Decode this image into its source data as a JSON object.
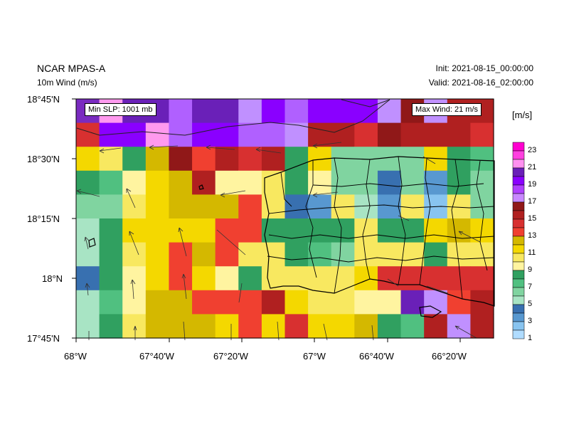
{
  "header": {
    "model": "NCAR MPAS-A",
    "field": "10m Wind (m/s)",
    "init": "Init: 2021-08-15_00:00:00",
    "valid": "Valid: 2021-08-16_02:00:00"
  },
  "annotations": {
    "min_slp": "Min SLP:  1001 mb",
    "max_wind": "Max Wind:  21 m/s"
  },
  "colorbar": {
    "title": "[m/s]",
    "labels": [
      "23",
      "21",
      "19",
      "17",
      "15",
      "13",
      "11",
      "9",
      "7",
      "5",
      "3",
      "1"
    ],
    "colors": [
      "#ff00d0",
      "#ff40e0",
      "#ff90f0",
      "#6a1fb8",
      "#8a00ff",
      "#b040ff",
      "#c888ff",
      "#901818",
      "#b02020",
      "#d83030",
      "#f04030",
      "#d4b800",
      "#f4d800",
      "#f8e860",
      "#fff4a0",
      "#30a060",
      "#50c080",
      "#80d4a0",
      "#a8e4c4",
      "#3870b0",
      "#5898d0",
      "#88c4f0",
      "#b0dcff"
    ]
  },
  "axes": {
    "y_ticks": [
      "18°45'N",
      "18°30'N",
      "18°15'N",
      "18°N",
      "17°45'N"
    ],
    "x_ticks": [
      "68°W",
      "67°40'W",
      "67°20'W",
      "67°W",
      "66°40'W",
      "66°20'W"
    ]
  },
  "grid": {
    "rows": [
      [
        "#7a2bc0",
        "#ff99ee",
        "#6a20b8",
        "#6a20b8",
        "#b060ff",
        "#6a20b8",
        "#6a20b8",
        "#c090ff",
        "#8a00ff",
        "#b060ff",
        "#8a00ff",
        "#8a00ff",
        "#8a00ff",
        "#c090ff",
        "#901818",
        "#c090ff",
        "#b02020",
        "#b02020"
      ],
      [
        "#d83030",
        "#8a00ff",
        "#8a00ff",
        "#ff99ee",
        "#b060ff",
        "#8a00ff",
        "#8a00ff",
        "#b060ff",
        "#b060ff",
        "#c090ff",
        "#b02020",
        "#b02020",
        "#d83030",
        "#901818",
        "#b02020",
        "#b02020",
        "#b02020",
        "#d83030"
      ],
      [
        "#f4d800",
        "#f8e860",
        "#30a060",
        "#d4b800",
        "#901818",
        "#f04030",
        "#b02020",
        "#d83030",
        "#b02020",
        "#30a060",
        "#f4d800",
        "#80d4a0",
        "#80d4a0",
        "#80d4a0",
        "#80d4a0",
        "#f4d800",
        "#30a060",
        "#50c080"
      ],
      [
        "#30a060",
        "#50c080",
        "#fff4a0",
        "#f4d800",
        "#d4b800",
        "#b02020",
        "#fff4a0",
        "#fff4a0",
        "#f8e860",
        "#30a060",
        "#fff4a0",
        "#80d4a0",
        "#80d4a0",
        "#3870b0",
        "#80d4a0",
        "#5898d0",
        "#30a060",
        "#80d4a0"
      ],
      [
        "#80d4a0",
        "#80d4a0",
        "#f8e860",
        "#f4d800",
        "#d4b800",
        "#d4b800",
        "#d4b800",
        "#f04030",
        "#f8e860",
        "#3870b0",
        "#5898d0",
        "#f8e860",
        "#a8e4c4",
        "#5898d0",
        "#f8e860",
        "#88c4f0",
        "#f8e860",
        "#80d4a0"
      ],
      [
        "#a8e4c4",
        "#30a060",
        "#f4d800",
        "#f4d800",
        "#f4d800",
        "#f4d800",
        "#f04030",
        "#f04030",
        "#30a060",
        "#30a060",
        "#30a060",
        "#30a060",
        "#f8e860",
        "#30a060",
        "#30a060",
        "#f4d800",
        "#d4b800",
        "#f4d800"
      ],
      [
        "#a8e4c4",
        "#30a060",
        "#f8e860",
        "#f4d800",
        "#f04030",
        "#d4b800",
        "#f04030",
        "#f8e860",
        "#f8e860",
        "#30a060",
        "#50c080",
        "#80d4a0",
        "#f8e860",
        "#f8e860",
        "#f8e860",
        "#30a060",
        "#f8e860",
        "#f8e860"
      ],
      [
        "#3870b0",
        "#30a060",
        "#fff4a0",
        "#f4d800",
        "#f04030",
        "#f4d800",
        "#fff4a0",
        "#30a060",
        "#f8e860",
        "#f8e860",
        "#f8e860",
        "#f8e860",
        "#f4d800",
        "#d83030",
        "#d83030",
        "#d83030",
        "#d83030",
        "#d83030"
      ],
      [
        "#a8e4c4",
        "#50c080",
        "#fff4a0",
        "#d4b800",
        "#d4b800",
        "#f04030",
        "#f04030",
        "#f04030",
        "#b02020",
        "#f4d800",
        "#f8e860",
        "#f8e860",
        "#fff4a0",
        "#fff4a0",
        "#6a20b8",
        "#c090ff",
        "#f04030",
        "#b02020"
      ],
      [
        "#a8e4c4",
        "#30a060",
        "#f8e860",
        "#d4b800",
        "#d4b800",
        "#d4b800",
        "#f4d800",
        "#f04030",
        "#f4d800",
        "#d83030",
        "#f4d800",
        "#f4d800",
        "#d4b800",
        "#30a060",
        "#50c080",
        "#b02020",
        "#c090ff",
        "#b02020"
      ]
    ]
  }
}
